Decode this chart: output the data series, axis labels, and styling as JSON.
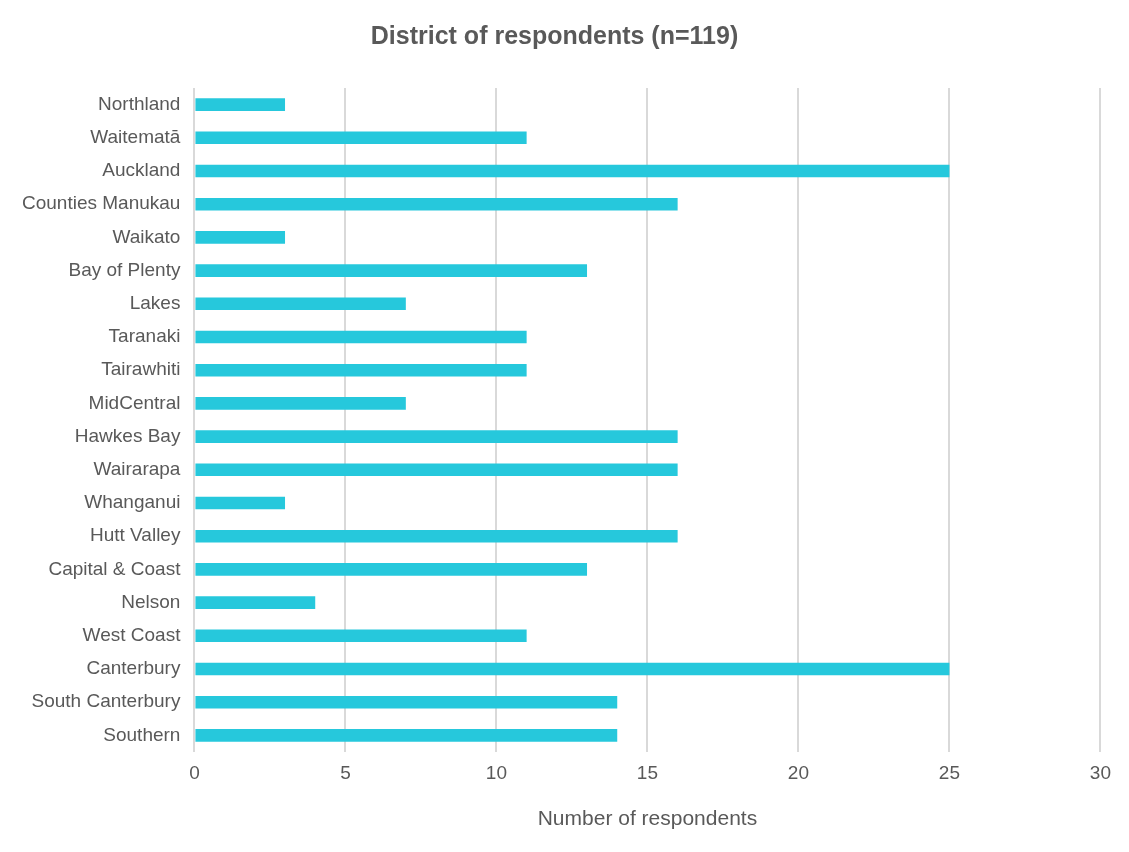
{
  "chart_data": {
    "type": "bar",
    "orientation": "horizontal",
    "title": "District of respondents (n=119)",
    "xlabel": "Number of respondents",
    "categories": [
      "Northland",
      "Waitematā",
      "Auckland",
      "Counties Manukau",
      "Waikato",
      "Bay of Plenty",
      "Lakes",
      "Taranaki",
      "Tairawhiti",
      "MidCentral",
      "Hawkes Bay",
      "Wairarapa",
      "Whanganui",
      "Hutt Valley",
      "Capital & Coast",
      "Nelson",
      "West Coast",
      "Canterbury",
      "South Canterbury",
      "Southern"
    ],
    "values": [
      3,
      11,
      25,
      16,
      3,
      13,
      7,
      11,
      11,
      7,
      16,
      16,
      3,
      16,
      13,
      4,
      11,
      25,
      14,
      14
    ],
    "color": "#26c8dc",
    "xlim": [
      0,
      30
    ],
    "xticks": [
      0,
      5,
      10,
      15,
      20,
      25,
      30
    ],
    "grid": "x",
    "legend": false
  }
}
